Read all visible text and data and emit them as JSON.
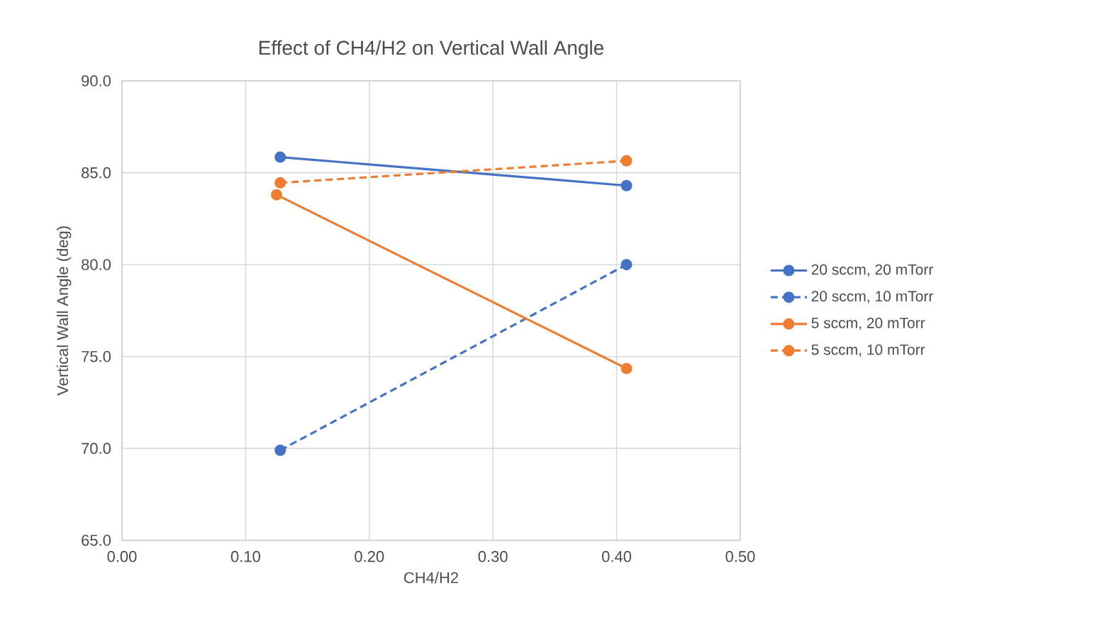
{
  "chart_data": {
    "type": "line",
    "title": "Effect of CH4/H2 on Vertical Wall Angle",
    "xlabel": "CH4/H2",
    "ylabel": "Vertical Wall Angle (deg)",
    "xlim": [
      0,
      0.5
    ],
    "xticks": [
      {
        "value": 0,
        "label": "0.00"
      },
      {
        "value": 0.1,
        "label": "0.10"
      },
      {
        "value": 0.2,
        "label": "0.20"
      },
      {
        "value": 0.3,
        "label": "0.30"
      },
      {
        "value": 0.4,
        "label": "0.40"
      },
      {
        "value": 0.5,
        "label": "0.50"
      }
    ],
    "ylim": [
      65,
      90
    ],
    "yticks": [
      {
        "value": 65,
        "label": "65.0"
      },
      {
        "value": 70,
        "label": "70.0"
      },
      {
        "value": 75,
        "label": "75.0"
      },
      {
        "value": 80,
        "label": "80.0"
      },
      {
        "value": 85,
        "label": "85.0"
      },
      {
        "value": 90,
        "label": "90.0"
      }
    ],
    "grid": true,
    "legend": "right",
    "marker": "circle",
    "series": [
      {
        "name": "20 sccm, 20 mTorr",
        "color": "#4472c4",
        "line_style": "solid",
        "x": [
          0.128,
          0.408
        ],
        "values": [
          85.85,
          84.3
        ]
      },
      {
        "name": "20 sccm, 10 mTorr",
        "color": "#4472c4",
        "line_style": "dashed",
        "x": [
          0.128,
          0.408
        ],
        "values": [
          69.9,
          80.0
        ]
      },
      {
        "name": "5 sccm, 20 mTorr",
        "color": "#ed7d31",
        "line_style": "solid",
        "x": [
          0.125,
          0.408
        ],
        "values": [
          83.8,
          74.35
        ]
      },
      {
        "name": "5 sccm, 10 mTorr",
        "color": "#ed7d31",
        "line_style": "dashed",
        "x": [
          0.128,
          0.408
        ],
        "values": [
          84.45,
          85.65
        ]
      }
    ]
  }
}
